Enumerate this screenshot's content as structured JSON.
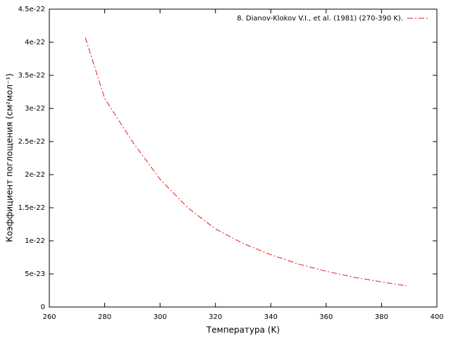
{
  "chart_data": {
    "type": "line",
    "xlabel": "Температура (K)",
    "ylabel": "Коэффициент поглощения (см²мол⁻¹)",
    "series": [
      {
        "name": "8. Dianov-Klokov V.I., et al. (1981) (270-390 K).",
        "color": "#e41a1c",
        "x": [
          273,
          280,
          290,
          300,
          310,
          320,
          330,
          340,
          350,
          360,
          370,
          380,
          389
        ],
        "values": [
          4.07e-22,
          3.15e-22,
          2.5e-22,
          1.93e-22,
          1.5e-22,
          1.18e-22,
          9.6e-23,
          7.9e-23,
          6.5e-23,
          5.4e-23,
          4.5e-23,
          3.8e-23,
          3.2e-23
        ]
      }
    ],
    "xlim": [
      260,
      400
    ],
    "xticks": [
      260,
      280,
      300,
      320,
      340,
      360,
      380,
      400
    ],
    "ylim": [
      0,
      4.5e-22
    ],
    "yticks": [
      0,
      {
        "value": 5e-23,
        "label": "5e-23"
      },
      {
        "value": 1e-22,
        "label": "1e-22"
      },
      {
        "value": 1.5e-22,
        "label": "1.5e-22"
      },
      {
        "value": 2e-22,
        "label": "2e-22"
      },
      {
        "value": 2.5e-22,
        "label": "2.5e-22"
      },
      {
        "value": 3e-22,
        "label": "3e-22"
      },
      {
        "value": 3.5e-22,
        "label": "3.5e-22"
      },
      {
        "value": 4e-22,
        "label": "4e-22"
      },
      {
        "value": 4.5e-22,
        "label": "4.5e-22"
      }
    ],
    "grid": false,
    "legend": "top-right"
  }
}
